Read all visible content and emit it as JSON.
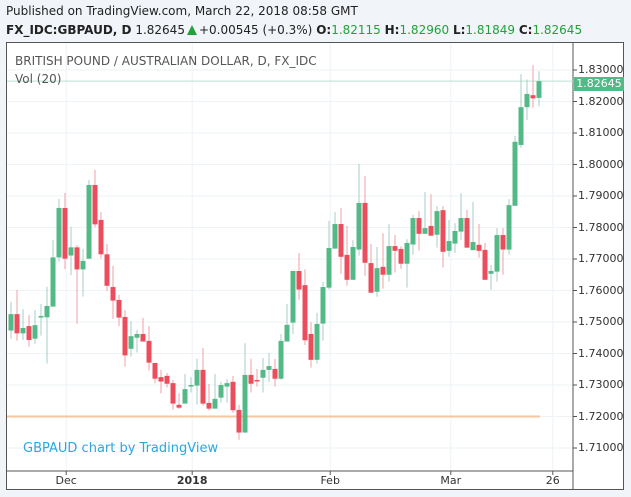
{
  "header": {
    "published": "Published on TradingView.com, March 22, 2018 08:58 GMT",
    "symbol": "FX_IDC:GBPAUD, D",
    "price": "1.82645",
    "change": "+0.00545 (+0.3%)",
    "o_label": "O:",
    "o": "1.82115",
    "h_label": "H:",
    "h": "1.82960",
    "l_label": "L:",
    "l": "1.81849",
    "c_label": "C:",
    "c": "1.82645"
  },
  "chart": {
    "title": "BRITISH POUND / AUSTRALIAN DOLLAR, D, FX_IDC",
    "volume_label": "Vol (20)",
    "branding": "GBPAUD chart by TradingView",
    "last_price_label": "1.82645",
    "colors": {
      "up": "#53b987",
      "down": "#eb4d5c",
      "up_wick": "#a8cdc8",
      "down_wick": "#f2a0a8",
      "ref_line": "#f9c59a",
      "grid": "#eef3f5"
    }
  },
  "chart_data": {
    "type": "candlestick",
    "title": "BRITISH POUND / AUSTRALIAN DOLLAR, D, FX_IDC",
    "y_ticks": [
      "1.83000",
      "1.82000",
      "1.81000",
      "1.80000",
      "1.79000",
      "1.78000",
      "1.77000",
      "1.76000",
      "1.75000",
      "1.74000",
      "1.73000",
      "1.72000",
      "1.71000"
    ],
    "ylim": [
      1.7045,
      1.834
    ],
    "x_ticks": [
      {
        "label": "Dec",
        "index": 9.2
      },
      {
        "label": "2018",
        "index": 30.2
      },
      {
        "label": "Feb",
        "index": 53.2
      },
      {
        "label": "Mar",
        "index": 73.3
      },
      {
        "label": "26",
        "index": 90.3
      }
    ],
    "reference_line": 1.72,
    "last_price": 1.82645,
    "ohlc": [
      [
        1.7473,
        1.7564,
        1.7447,
        1.7525
      ],
      [
        1.7525,
        1.7602,
        1.7441,
        1.7464
      ],
      [
        1.7464,
        1.7541,
        1.7443,
        1.7481
      ],
      [
        1.7487,
        1.7522,
        1.7422,
        1.7443
      ],
      [
        1.7447,
        1.7538,
        1.7431,
        1.749
      ],
      [
        1.7515,
        1.7557,
        1.7457,
        1.7519
      ],
      [
        1.7515,
        1.7612,
        1.7368,
        1.7551
      ],
      [
        1.7549,
        1.776,
        1.7549,
        1.7705
      ],
      [
        1.7705,
        1.7891,
        1.7691,
        1.7862
      ],
      [
        1.7862,
        1.791,
        1.7668,
        1.7701
      ],
      [
        1.7711,
        1.7802,
        1.7649,
        1.7737
      ],
      [
        1.7737,
        1.7744,
        1.7495,
        1.7667
      ],
      [
        1.7667,
        1.7732,
        1.7581,
        1.7694
      ],
      [
        1.7701,
        1.7951,
        1.7701,
        1.7935
      ],
      [
        1.7935,
        1.7983,
        1.7801,
        1.781
      ],
      [
        1.7824,
        1.7849,
        1.7702,
        1.7715
      ],
      [
        1.7715,
        1.7748,
        1.7599,
        1.7615
      ],
      [
        1.7611,
        1.7678,
        1.751,
        1.7568
      ],
      [
        1.757,
        1.7586,
        1.7487,
        1.7514
      ],
      [
        1.7516,
        1.7538,
        1.7358,
        1.7394
      ],
      [
        1.7415,
        1.7503,
        1.739,
        1.7455
      ],
      [
        1.745,
        1.7475,
        1.7403,
        1.7462
      ],
      [
        1.7462,
        1.7513,
        1.7438,
        1.7438
      ],
      [
        1.744,
        1.7487,
        1.7346,
        1.7371
      ],
      [
        1.737,
        1.737,
        1.7305,
        1.732
      ],
      [
        1.7325,
        1.7348,
        1.7273,
        1.7311
      ],
      [
        1.7329,
        1.7338,
        1.7292,
        1.7304
      ],
      [
        1.7306,
        1.7316,
        1.7222,
        1.7241
      ],
      [
        1.7237,
        1.7274,
        1.7224,
        1.7228
      ],
      [
        1.7241,
        1.7335,
        1.7241,
        1.7287
      ],
      [
        1.7295,
        1.7325,
        1.7276,
        1.73
      ],
      [
        1.7298,
        1.7383,
        1.7238,
        1.7348
      ],
      [
        1.7348,
        1.7418,
        1.7235,
        1.7241
      ],
      [
        1.7243,
        1.7303,
        1.7219,
        1.7225
      ],
      [
        1.7225,
        1.7335,
        1.7225,
        1.7256
      ],
      [
        1.726,
        1.731,
        1.7244,
        1.73
      ],
      [
        1.7295,
        1.7319,
        1.7244,
        1.7306
      ],
      [
        1.731,
        1.7329,
        1.7212,
        1.722
      ],
      [
        1.7221,
        1.7237,
        1.7126,
        1.7149
      ],
      [
        1.7149,
        1.7433,
        1.7149,
        1.7332
      ],
      [
        1.7332,
        1.7383,
        1.7276,
        1.7304
      ],
      [
        1.7316,
        1.7351,
        1.7295,
        1.7313
      ],
      [
        1.7323,
        1.7386,
        1.7276,
        1.7348
      ],
      [
        1.7348,
        1.7402,
        1.731,
        1.736
      ],
      [
        1.7351,
        1.7383,
        1.7295,
        1.732
      ],
      [
        1.732,
        1.7462,
        1.7317,
        1.744
      ],
      [
        1.7438,
        1.7557,
        1.7438,
        1.7491
      ],
      [
        1.7498,
        1.7662,
        1.7462,
        1.7662
      ],
      [
        1.7662,
        1.7719,
        1.7571,
        1.7603
      ],
      [
        1.7617,
        1.7668,
        1.7427,
        1.7442
      ],
      [
        1.7462,
        1.75,
        1.7355,
        1.738
      ],
      [
        1.738,
        1.7529,
        1.7368,
        1.7494
      ],
      [
        1.7495,
        1.7627,
        1.7441,
        1.7611
      ],
      [
        1.7609,
        1.7821,
        1.7603,
        1.7735
      ],
      [
        1.7733,
        1.7849,
        1.7733,
        1.7811
      ],
      [
        1.7811,
        1.7862,
        1.7653,
        1.7707
      ],
      [
        1.7713,
        1.7805,
        1.7615,
        1.7634
      ],
      [
        1.7634,
        1.776,
        1.7634,
        1.7738
      ],
      [
        1.773,
        1.8002,
        1.7711,
        1.7878
      ],
      [
        1.7878,
        1.7963,
        1.7647,
        1.7688
      ],
      [
        1.7687,
        1.7748,
        1.7593,
        1.7593
      ],
      [
        1.7596,
        1.7738,
        1.758,
        1.7671
      ],
      [
        1.7675,
        1.7782,
        1.7606,
        1.765
      ],
      [
        1.765,
        1.7811,
        1.7628,
        1.7741
      ],
      [
        1.7741,
        1.7776,
        1.7657,
        1.7726
      ],
      [
        1.7732,
        1.774,
        1.7669,
        1.7685
      ],
      [
        1.7685,
        1.7763,
        1.7609,
        1.7751
      ],
      [
        1.7746,
        1.784,
        1.7714,
        1.783
      ],
      [
        1.783,
        1.7852,
        1.7727,
        1.778
      ],
      [
        1.778,
        1.7913,
        1.778,
        1.7798
      ],
      [
        1.7805,
        1.7906,
        1.7774,
        1.7774
      ],
      [
        1.7777,
        1.7868,
        1.7736,
        1.7852
      ],
      [
        1.7855,
        1.7868,
        1.7673,
        1.7723
      ],
      [
        1.7726,
        1.7824,
        1.7707,
        1.7757
      ],
      [
        1.7749,
        1.7814,
        1.772,
        1.7789
      ],
      [
        1.7787,
        1.7909,
        1.7761,
        1.783
      ],
      [
        1.783,
        1.7856,
        1.7736,
        1.7736
      ],
      [
        1.7728,
        1.7881,
        1.7728,
        1.7754
      ],
      [
        1.7745,
        1.7811,
        1.7704,
        1.7726
      ],
      [
        1.7729,
        1.7751,
        1.7634,
        1.7634
      ],
      [
        1.7653,
        1.7681,
        1.7602,
        1.7662
      ],
      [
        1.766,
        1.7798,
        1.7628,
        1.7776
      ],
      [
        1.7776,
        1.7798,
        1.765,
        1.773
      ],
      [
        1.773,
        1.789,
        1.7714,
        1.7871
      ],
      [
        1.7869,
        1.8091,
        1.7869,
        1.8072
      ],
      [
        1.8062,
        1.8287,
        1.8053,
        1.8182
      ],
      [
        1.8182,
        1.827,
        1.8141,
        1.8224
      ],
      [
        1.822,
        1.8316,
        1.818,
        1.821
      ],
      [
        1.82115,
        1.8296,
        1.81849,
        1.82645
      ]
    ]
  }
}
